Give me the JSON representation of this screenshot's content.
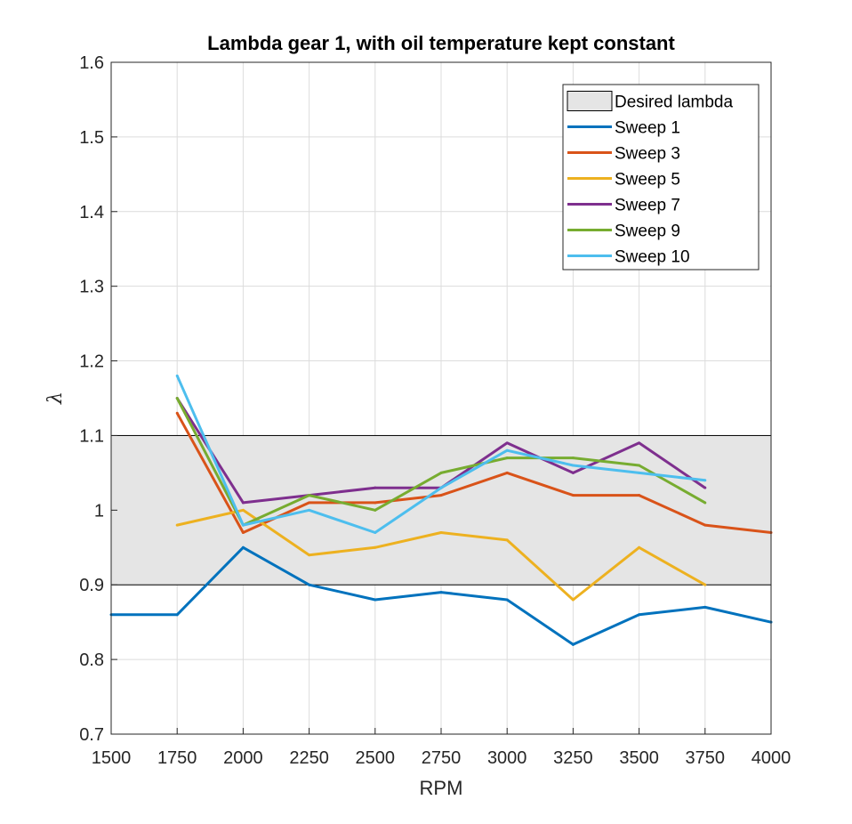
{
  "chart_data": {
    "type": "line",
    "title": "Lambda gear 1, with oil temperature kept constant",
    "xlabel": "RPM",
    "ylabel": "λ",
    "xlim": [
      1500,
      4000
    ],
    "ylim": [
      0.7,
      1.6
    ],
    "xticks": [
      "1500",
      "1750",
      "2000",
      "2250",
      "2500",
      "2750",
      "3000",
      "3250",
      "3500",
      "3750",
      "4000"
    ],
    "yticks": [
      "0.7",
      "0.8",
      "0.9",
      "1",
      "1.1",
      "1.2",
      "1.3",
      "1.4",
      "1.5",
      "1.6"
    ],
    "grid": true,
    "legend_position": "top-right",
    "band": {
      "name": "Desired lambda",
      "y_range": [
        0.9,
        1.1
      ],
      "color": "#e5e5e5"
    },
    "series": [
      {
        "name": "Sweep 1",
        "color": "#0072BD",
        "x": [
          1500,
          1750,
          2000,
          2250,
          2500,
          2750,
          3000,
          3250,
          3500,
          3750,
          4000
        ],
        "y": [
          0.86,
          0.86,
          0.95,
          0.9,
          0.88,
          0.89,
          0.88,
          0.82,
          0.86,
          0.87,
          0.85
        ]
      },
      {
        "name": "Sweep 3",
        "color": "#D95319",
        "x": [
          1750,
          2000,
          2250,
          2500,
          2750,
          3000,
          3250,
          3500,
          3750,
          4000
        ],
        "y": [
          1.13,
          0.97,
          1.01,
          1.01,
          1.02,
          1.05,
          1.02,
          1.02,
          0.98,
          0.97
        ]
      },
      {
        "name": "Sweep 5",
        "color": "#EDB120",
        "x": [
          1750,
          2000,
          2250,
          2500,
          2750,
          3000,
          3250,
          3500,
          3750
        ],
        "y": [
          0.98,
          1.0,
          0.94,
          0.95,
          0.97,
          0.96,
          0.88,
          0.95,
          0.9
        ]
      },
      {
        "name": "Sweep 7",
        "color": "#7E2F8E",
        "x": [
          1750,
          2000,
          2250,
          2500,
          2750,
          3000,
          3250,
          3500,
          3750
        ],
        "y": [
          1.15,
          1.01,
          1.02,
          1.03,
          1.03,
          1.09,
          1.05,
          1.09,
          1.03
        ]
      },
      {
        "name": "Sweep 9",
        "color": "#77AC30",
        "x": [
          1750,
          2000,
          2250,
          2500,
          2750,
          3000,
          3250,
          3500,
          3750
        ],
        "y": [
          1.15,
          0.98,
          1.02,
          1.0,
          1.05,
          1.07,
          1.07,
          1.06,
          1.01
        ]
      },
      {
        "name": "Sweep 10",
        "color": "#4DBEEE",
        "x": [
          1750,
          2000,
          2250,
          2500,
          2750,
          3000,
          3250,
          3500,
          3750
        ],
        "y": [
          1.18,
          0.98,
          1.0,
          0.97,
          1.03,
          1.08,
          1.06,
          1.05,
          1.04
        ]
      }
    ]
  }
}
